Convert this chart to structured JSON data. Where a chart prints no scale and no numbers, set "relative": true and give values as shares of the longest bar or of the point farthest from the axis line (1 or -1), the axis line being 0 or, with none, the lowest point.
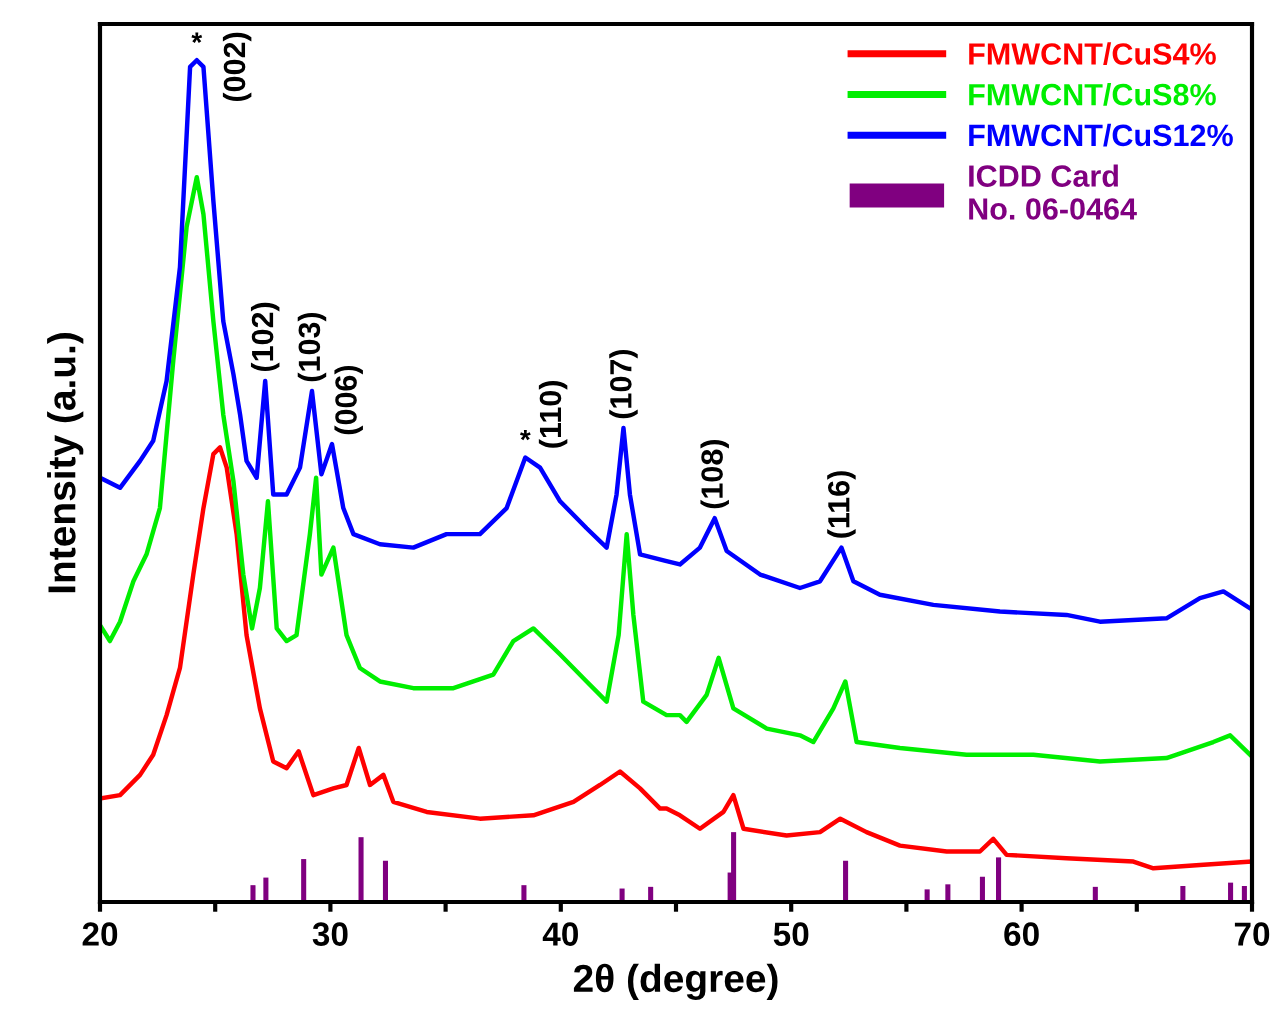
{
  "chart_data": {
    "type": "line",
    "relative": true,
    "xlabel": "2θ (degree)",
    "ylabel": "Intensity (a.u.)",
    "xlim": [
      20,
      70
    ],
    "xticks": [
      20,
      {
        "value": 25,
        "label": null
      },
      30,
      {
        "value": 35,
        "label": null
      },
      40,
      {
        "value": 45,
        "label": null
      },
      50,
      {
        "value": 55,
        "label": null
      },
      60,
      {
        "value": 65,
        "label": null
      },
      70
    ],
    "legend": "top right",
    "grid": false,
    "marker": "none",
    "line_style": "solid",
    "series": [
      {
        "name": "FMWCNT/CuS4%",
        "color": "#ff0000",
        "x": [
          20.0,
          20.87,
          21.74,
          22.31,
          22.89,
          23.47,
          24.05,
          24.49,
          24.92,
          25.21,
          25.5,
          25.93,
          26.36,
          26.94,
          27.52,
          28.1,
          28.62,
          29.26,
          30.13,
          30.7,
          31.23,
          31.72,
          32.3,
          32.73,
          34.18,
          36.49,
          38.81,
          40.55,
          41.7,
          42.57,
          43.44,
          44.31,
          44.59,
          45.17,
          46.04,
          47.06,
          47.49,
          47.93,
          49.8,
          51.25,
          52.13,
          53.27,
          54.72,
          56.75,
          58.19,
          58.77,
          59.35,
          61.95,
          64.85,
          65.72,
          67.74,
          69.91
        ],
        "values": [
          0.123,
          0.127,
          0.151,
          0.175,
          0.222,
          0.278,
          0.389,
          0.468,
          0.532,
          0.54,
          0.516,
          0.437,
          0.317,
          0.23,
          0.167,
          0.159,
          0.179,
          0.127,
          0.135,
          0.139,
          0.183,
          0.139,
          0.151,
          0.119,
          0.107,
          0.099,
          0.103,
          0.119,
          0.139,
          0.155,
          0.135,
          0.111,
          0.111,
          0.103,
          0.087,
          0.107,
          0.127,
          0.087,
          0.079,
          0.083,
          0.099,
          0.083,
          0.067,
          0.06,
          0.06,
          0.075,
          0.056,
          0.052,
          0.048,
          0.04,
          0.044,
          0.048
        ]
      },
      {
        "name": "FMWCNT/CuS8%",
        "color": "#00ee00",
        "x": [
          20.0,
          20.43,
          20.87,
          21.45,
          22.02,
          22.6,
          23.18,
          23.76,
          24.2,
          24.49,
          24.92,
          25.35,
          25.79,
          26.22,
          26.6,
          26.94,
          27.29,
          27.67,
          28.1,
          28.53,
          29.11,
          29.38,
          29.61,
          30.13,
          30.7,
          31.28,
          32.15,
          33.6,
          35.34,
          37.07,
          37.94,
          38.81,
          39.97,
          41.12,
          41.99,
          42.51,
          42.86,
          43.15,
          43.58,
          44.59,
          45.17,
          45.46,
          46.33,
          46.85,
          47.49,
          48.94,
          50.38,
          50.96,
          51.83,
          52.35,
          52.84,
          54.72,
          57.61,
          60.51,
          63.4,
          66.29,
          68.32,
          69.05,
          69.91
        ],
        "values": [
          0.329,
          0.31,
          0.333,
          0.381,
          0.413,
          0.468,
          0.643,
          0.802,
          0.861,
          0.817,
          0.69,
          0.579,
          0.5,
          0.389,
          0.325,
          0.373,
          0.476,
          0.325,
          0.31,
          0.317,
          0.437,
          0.504,
          0.389,
          0.421,
          0.317,
          0.278,
          0.262,
          0.254,
          0.254,
          0.27,
          0.31,
          0.325,
          0.294,
          0.262,
          0.238,
          0.317,
          0.437,
          0.341,
          0.238,
          0.222,
          0.222,
          0.214,
          0.246,
          0.29,
          0.23,
          0.206,
          0.198,
          0.19,
          0.23,
          0.262,
          0.19,
          0.183,
          0.175,
          0.175,
          0.167,
          0.171,
          0.19,
          0.198,
          0.175
        ]
      },
      {
        "name": "FMWCNT/CuS12%",
        "color": "#0000ff",
        "x": [
          20.0,
          20.87,
          21.74,
          22.31,
          22.89,
          23.47,
          23.91,
          24.2,
          24.49,
          24.92,
          25.35,
          25.79,
          26.08,
          26.36,
          26.8,
          27.17,
          27.52,
          28.1,
          28.68,
          29.2,
          29.61,
          30.07,
          30.56,
          31.0,
          32.15,
          33.6,
          35.04,
          36.49,
          37.65,
          38.46,
          39.1,
          39.97,
          41.12,
          41.99,
          42.42,
          42.72,
          43.0,
          43.44,
          44.59,
          45.17,
          46.04,
          46.68,
          47.2,
          48.65,
          50.38,
          51.25,
          52.18,
          52.7,
          53.85,
          56.17,
          59.06,
          61.95,
          63.4,
          66.29,
          67.74,
          68.76,
          69.91
        ],
        "values": [
          0.504,
          0.492,
          0.524,
          0.548,
          0.619,
          0.754,
          0.992,
          1.0,
          0.992,
          0.833,
          0.69,
          0.627,
          0.579,
          0.524,
          0.504,
          0.619,
          0.484,
          0.484,
          0.516,
          0.607,
          0.508,
          0.544,
          0.468,
          0.437,
          0.425,
          0.421,
          0.437,
          0.437,
          0.468,
          0.528,
          0.516,
          0.476,
          0.444,
          0.421,
          0.484,
          0.563,
          0.484,
          0.413,
          0.405,
          0.401,
          0.421,
          0.456,
          0.417,
          0.389,
          0.373,
          0.381,
          0.421,
          0.381,
          0.365,
          0.353,
          0.345,
          0.341,
          0.333,
          0.337,
          0.361,
          0.369,
          0.349
        ]
      },
      {
        "name": "ICDD Card\nNo. 06-0464",
        "type": "bar",
        "color": "#800080",
        "x": [
          26.64,
          27.2,
          28.84,
          31.33,
          32.39,
          38.4,
          42.66,
          43.9,
          47.35,
          47.5,
          52.36,
          55.9,
          56.8,
          58.3,
          59.0,
          63.2,
          67.0,
          69.07,
          69.67
        ],
        "values": [
          0.02,
          0.029,
          0.051,
          0.077,
          0.049,
          0.02,
          0.016,
          0.018,
          0.035,
          0.083,
          0.049,
          0.015,
          0.021,
          0.03,
          0.053,
          0.018,
          0.019,
          0.023,
          0.019
        ]
      }
    ],
    "annotations": [
      {
        "text": "*",
        "x": 24.2,
        "y": 1.0
      },
      {
        "text": "(002)",
        "x": 24.49,
        "y": 0.992
      },
      {
        "text": "(102)",
        "x": 27.17,
        "y": 0.619
      },
      {
        "text": "(103)",
        "x": 29.2,
        "y": 0.607
      },
      {
        "text": "(006)",
        "x": 30.07,
        "y": 0.544
      },
      {
        "text": "*",
        "x": 38.46,
        "y": 0.528
      },
      {
        "text": "(110)",
        "x": 38.46,
        "y": 0.528
      },
      {
        "text": "(107)",
        "x": 42.72,
        "y": 0.563
      },
      {
        "text": "(108)",
        "x": 46.68,
        "y": 0.456
      },
      {
        "text": "(116)",
        "x": 52.18,
        "y": 0.421
      }
    ]
  }
}
